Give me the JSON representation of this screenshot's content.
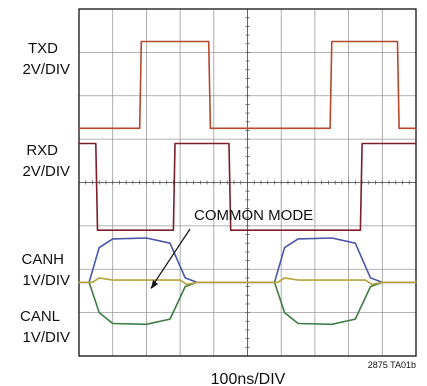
{
  "chart_data": {
    "type": "line",
    "title": "",
    "xlabel": "100ns/DIV",
    "ylabel": "",
    "figure_id": "2875 TA01b",
    "grid": true,
    "xlim": [
      0,
      10
    ],
    "ylim": [
      -8,
      0
    ],
    "channels": [
      {
        "name": "TXD",
        "scale": "2V/DIV",
        "color": "#b5492d"
      },
      {
        "name": "RXD",
        "scale": "2V/DIV",
        "color": "#7a1f2b"
      },
      {
        "name": "CANH",
        "scale": "1V/DIV",
        "color": "#4b56a8"
      },
      {
        "name": "CANL",
        "scale": "1V/DIV",
        "color": "#3f7d45"
      }
    ],
    "annotation": {
      "text": "COMMON MODE",
      "color": "#b6a43a"
    },
    "series": [
      {
        "name": "TXD",
        "points": [
          [
            0,
            -2.75
          ],
          [
            1.8,
            -2.75
          ],
          [
            1.85,
            -0.75
          ],
          [
            3.85,
            -0.75
          ],
          [
            3.9,
            -2.75
          ],
          [
            7.45,
            -2.75
          ],
          [
            7.5,
            -0.75
          ],
          [
            9.45,
            -0.75
          ],
          [
            9.5,
            -2.75
          ],
          [
            10,
            -2.75
          ]
        ]
      },
      {
        "name": "RXD",
        "points": [
          [
            0,
            -3.1
          ],
          [
            0.5,
            -3.1
          ],
          [
            0.55,
            -5.1
          ],
          [
            2.8,
            -5.1
          ],
          [
            2.85,
            -3.1
          ],
          [
            4.45,
            -3.1
          ],
          [
            4.5,
            -5.1
          ],
          [
            8.35,
            -5.1
          ],
          [
            8.4,
            -3.1
          ],
          [
            10,
            -3.1
          ]
        ]
      },
      {
        "name": "CANH",
        "points": [
          [
            0,
            -6.3
          ],
          [
            0.3,
            -6.3
          ],
          [
            0.6,
            -5.5
          ],
          [
            1,
            -5.3
          ],
          [
            2,
            -5.28
          ],
          [
            2.7,
            -5.4
          ],
          [
            3.15,
            -6.2
          ],
          [
            3.5,
            -6.3
          ],
          [
            5.8,
            -6.3
          ],
          [
            6.1,
            -5.5
          ],
          [
            6.5,
            -5.3
          ],
          [
            7.5,
            -5.28
          ],
          [
            8.2,
            -5.4
          ],
          [
            8.65,
            -6.2
          ],
          [
            9,
            -6.3
          ],
          [
            10,
            -6.3
          ]
        ]
      },
      {
        "name": "CANL",
        "points": [
          [
            0,
            -6.3
          ],
          [
            0.3,
            -6.3
          ],
          [
            0.6,
            -7.0
          ],
          [
            1,
            -7.25
          ],
          [
            2,
            -7.27
          ],
          [
            2.7,
            -7.15
          ],
          [
            3.15,
            -6.4
          ],
          [
            3.5,
            -6.3
          ],
          [
            5.8,
            -6.3
          ],
          [
            6.1,
            -7.0
          ],
          [
            6.5,
            -7.25
          ],
          [
            7.5,
            -7.27
          ],
          [
            8.2,
            -7.15
          ],
          [
            8.65,
            -6.4
          ],
          [
            9,
            -6.3
          ],
          [
            10,
            -6.3
          ]
        ]
      },
      {
        "name": "COMMON MODE",
        "points": [
          [
            0,
            -6.3
          ],
          [
            0.4,
            -6.3
          ],
          [
            0.6,
            -6.2
          ],
          [
            1,
            -6.25
          ],
          [
            3,
            -6.25
          ],
          [
            3.2,
            -6.35
          ],
          [
            3.5,
            -6.3
          ],
          [
            5.9,
            -6.3
          ],
          [
            6.1,
            -6.2
          ],
          [
            6.5,
            -6.25
          ],
          [
            8.5,
            -6.25
          ],
          [
            8.7,
            -6.35
          ],
          [
            9,
            -6.3
          ],
          [
            10,
            -6.3
          ]
        ]
      }
    ]
  }
}
